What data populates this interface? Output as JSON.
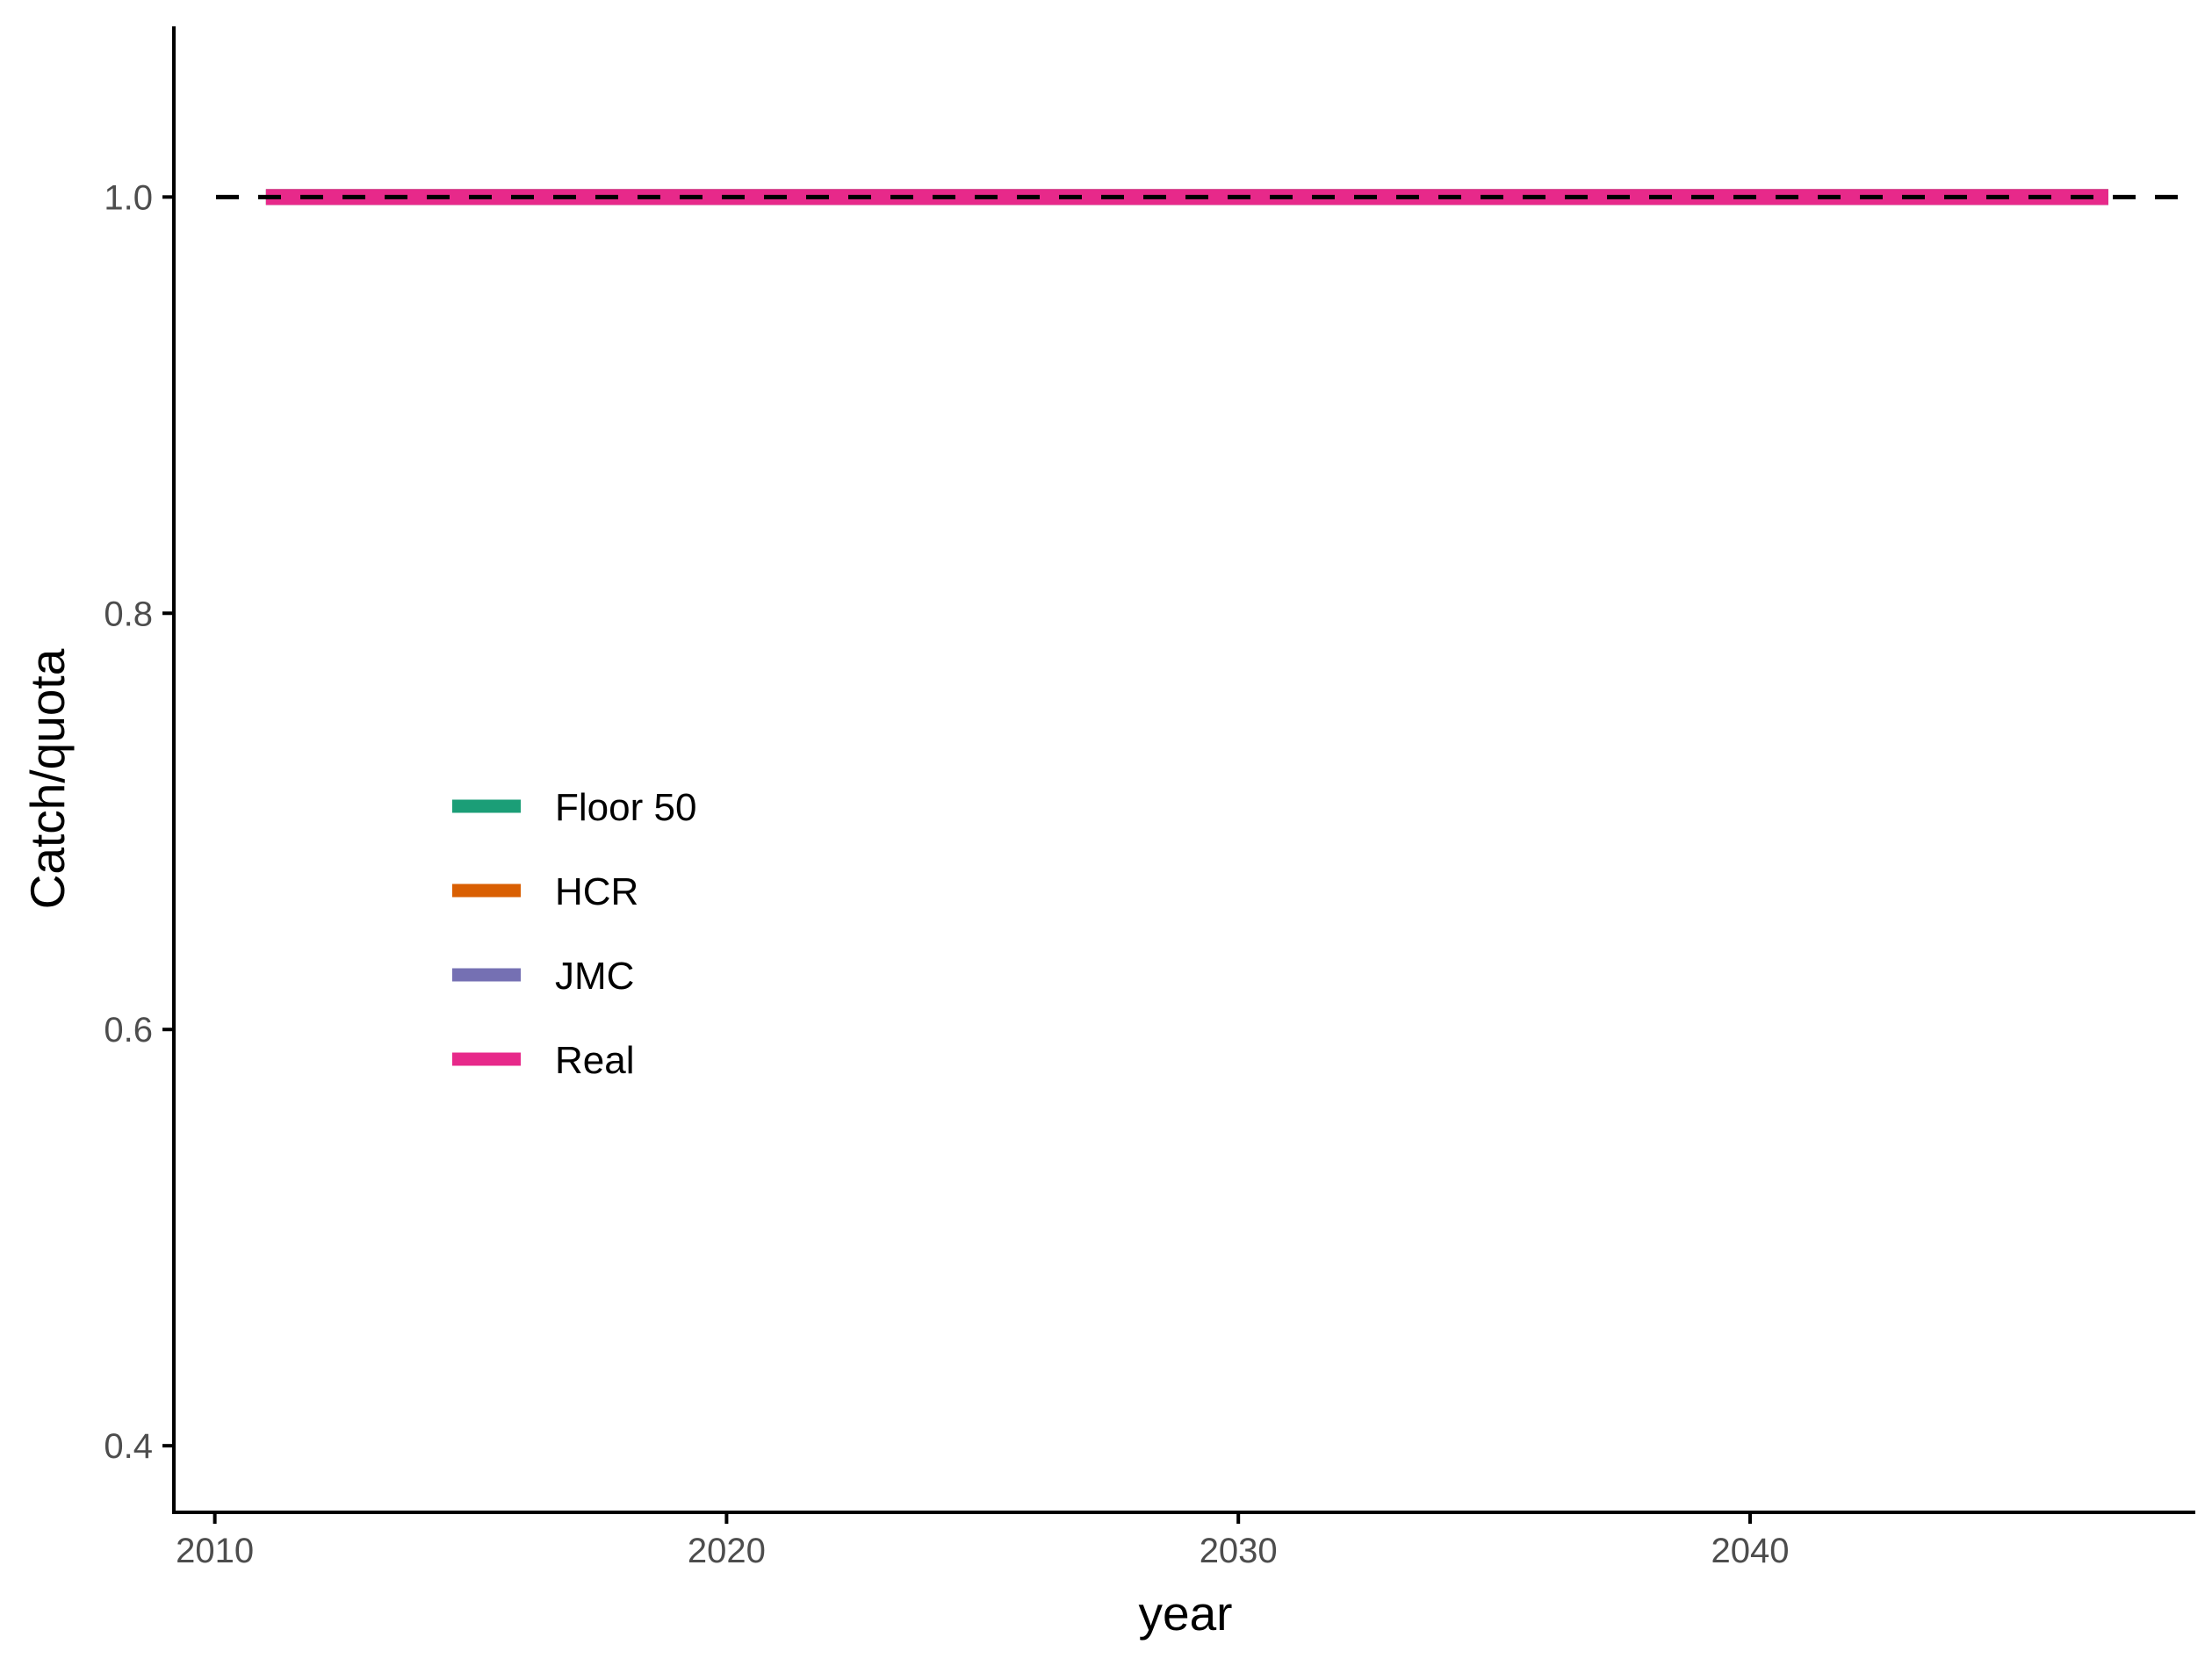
{
  "chart_data": {
    "type": "line",
    "xlabel": "year",
    "ylabel": "Catch/quota",
    "xlim": [
      2009.2,
      2048.7
    ],
    "ylim": [
      0.368,
      1.082
    ],
    "x_ticks": [
      2010,
      2020,
      2030,
      2040
    ],
    "y_ticks": [
      0.4,
      0.6,
      0.8,
      1.0
    ],
    "x_tick_labels": [
      "2010",
      "2020",
      "2030",
      "2040"
    ],
    "y_tick_labels": [
      "0.4",
      "0.6",
      "0.8",
      "1.0"
    ],
    "grid": false,
    "legend_position": "left-center inside plot",
    "reference_line": {
      "y": 1.0,
      "style": "dashed",
      "color": "#000000"
    },
    "series": [
      {
        "name": "Floor 50",
        "color": "#1B9E77",
        "x": [
          2011,
          2047
        ],
        "y": [
          1.0,
          1.0
        ]
      },
      {
        "name": "HCR",
        "color": "#D95F02",
        "x": [
          2011,
          2047
        ],
        "y": [
          1.0,
          1.0
        ]
      },
      {
        "name": "JMC",
        "color": "#7570B3",
        "x": [
          2011,
          2047
        ],
        "y": [
          1.0,
          1.0
        ]
      },
      {
        "name": "Real",
        "color": "#E7298A",
        "x": [
          2011,
          2047
        ],
        "y": [
          1.0,
          1.0
        ]
      }
    ]
  }
}
